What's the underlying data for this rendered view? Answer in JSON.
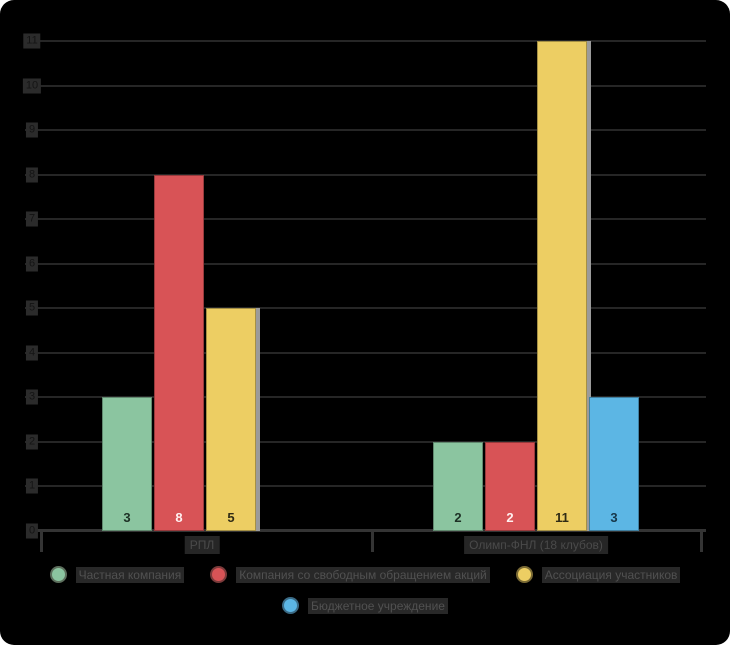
{
  "chart_data": {
    "type": "bar",
    "title": "",
    "xlabel": "",
    "ylabel": "",
    "background": "#000000",
    "grid": true,
    "legend_position": "bottom",
    "ylim": [
      0,
      11
    ],
    "y_ticks": [
      "0",
      "1",
      "2",
      "3",
      "4",
      "5",
      "6",
      "7",
      "8",
      "9",
      "10",
      "11"
    ],
    "categories": [
      "РПЛ",
      "Олимп-ФНЛ (18 клубов)"
    ],
    "series": [
      {
        "name": "Частная компания",
        "color": "#8bc5a0",
        "ring_color": "#5c6e5c",
        "value_label_color": "#1d3125",
        "values": [
          3,
          2
        ]
      },
      {
        "name": "Компания со свободным обращением акций",
        "color": "#d85356",
        "ring_color": "#7a3a3a",
        "value_label_color": "#fff0f0",
        "values": [
          8,
          2
        ]
      },
      {
        "name": "Ассоциация участников",
        "color": "#edce63",
        "ring_color": "#7a6a35",
        "value_label_color": "#2f2b15",
        "values": [
          5,
          11
        ]
      },
      {
        "name": "Бюджетное учреждение",
        "color": "#5cb6e4",
        "ring_color": "#3a6a85",
        "value_label_color": "#17374a",
        "values": [
          null,
          3
        ]
      }
    ]
  }
}
